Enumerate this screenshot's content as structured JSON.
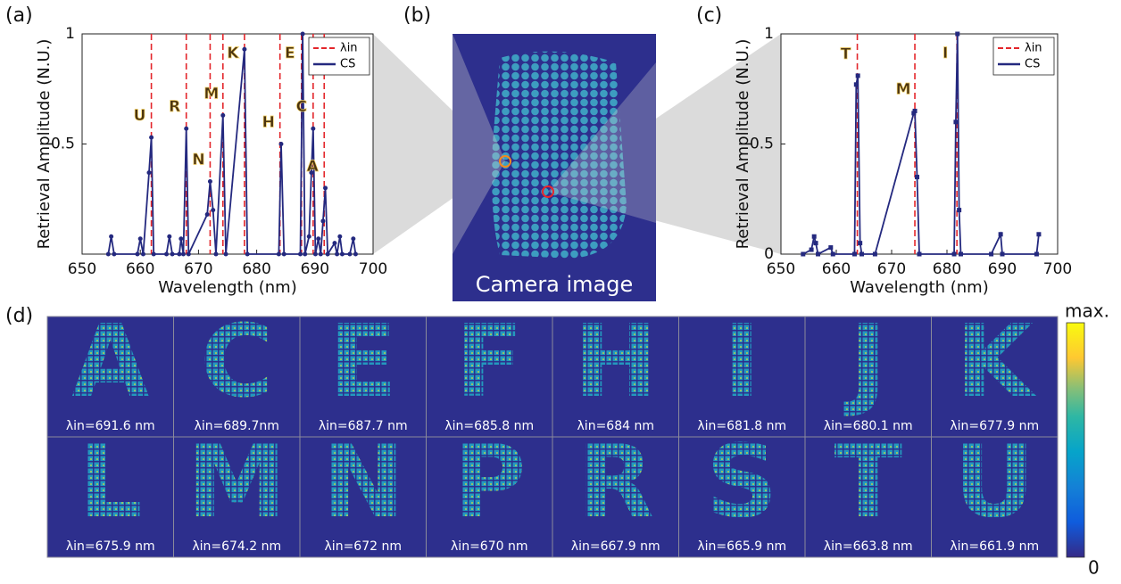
{
  "panel_labels": [
    "(a)",
    "(b)",
    "(c)",
    "(d)"
  ],
  "chart_data": [
    {
      "type": "line",
      "marker": "circle",
      "xlabel": "Wavelength (nm)",
      "ylabel": "Retrieval Amplitude (N.U.)",
      "xlim": [
        650,
        700
      ],
      "xticks": [
        650,
        660,
        670,
        680,
        690,
        700
      ],
      "ylim": [
        0,
        1
      ],
      "yticks": [
        0.5,
        1
      ],
      "legend": "upper right",
      "x": [
        654.5,
        655,
        655.5,
        659.5,
        660,
        660.5,
        661.5,
        661.9,
        662.3,
        664.5,
        665,
        665.5,
        666.7,
        667,
        667.4,
        667.9,
        668.3,
        671.5,
        672,
        672.5,
        673,
        674.2,
        674.7,
        677.9,
        678.4,
        683.8,
        684.2,
        684.7,
        687.5,
        687.9,
        688.3,
        689,
        689.4,
        689.7,
        690.1,
        690.6,
        691,
        691.4,
        691.8,
        692.2,
        693.4,
        693.8,
        694.3,
        694.7,
        696,
        696.6,
        697
      ],
      "series": [
        {
          "name": "CS",
          "color": "#24297f",
          "values": [
            0,
            0.08,
            0,
            0,
            0.07,
            0,
            0.37,
            0.53,
            0,
            0,
            0.08,
            0,
            0,
            0.07,
            0,
            0.57,
            0,
            0.18,
            0.33,
            0.2,
            0,
            0.63,
            0,
            0.93,
            0,
            0,
            0.5,
            0,
            0,
            1.0,
            0,
            0.08,
            0.37,
            0.57,
            0,
            0.07,
            0,
            0.15,
            0.3,
            0,
            0.05,
            0,
            0.08,
            0,
            0,
            0.07,
            0
          ]
        }
      ],
      "reference_lines": {
        "name": "λin",
        "color": "#e3262b",
        "x": [
          661.9,
          667.9,
          672,
          674.2,
          677.9,
          684,
          687.7,
          689.7,
          691.6
        ]
      },
      "annotations": [
        {
          "text": "U",
          "x": 661.9
        },
        {
          "text": "R",
          "x": 667.9
        },
        {
          "text": "N",
          "x": 672
        },
        {
          "text": "M",
          "x": 674.2
        },
        {
          "text": "K",
          "x": 677.9
        },
        {
          "text": "H",
          "x": 684
        },
        {
          "text": "E",
          "x": 687.7
        },
        {
          "text": "C",
          "x": 689.7
        },
        {
          "text": "A",
          "x": 691.6
        }
      ]
    },
    {
      "type": "line",
      "marker": "square",
      "xlabel": "Wavelength (nm)",
      "ylabel": "Retrieval Amplitude (N.U.)",
      "xlim": [
        650,
        700
      ],
      "xticks": [
        650,
        660,
        670,
        680,
        690,
        700
      ],
      "ylim": [
        0,
        1
      ],
      "yticks": [
        0,
        0.5,
        1
      ],
      "legend": "upper right",
      "x": [
        654,
        655.5,
        656,
        656.3,
        656.7,
        659,
        659.4,
        663.3,
        663.6,
        663.9,
        664.3,
        664.6,
        667,
        674,
        674.2,
        674.6,
        675,
        681.3,
        681.6,
        681.9,
        682.2,
        682.5,
        688,
        689.7,
        690,
        696.2,
        696.6
      ],
      "series": [
        {
          "name": "CS",
          "color": "#24297f",
          "values": [
            0,
            0.02,
            0.08,
            0.05,
            0,
            0.03,
            0,
            0,
            0.77,
            0.81,
            0.05,
            0,
            0,
            0.64,
            0.65,
            0.35,
            0,
            0,
            0.6,
            1.0,
            0.2,
            0,
            0,
            0.09,
            0,
            0,
            0.09
          ]
        }
      ],
      "reference_lines": {
        "name": "λin",
        "color": "#e3262b",
        "x": [
          663.8,
          674.2,
          681.8
        ]
      },
      "annotations": [
        {
          "text": "T",
          "x": 663.8
        },
        {
          "text": "M",
          "x": 674.2
        },
        {
          "text": "I",
          "x": 681.8
        }
      ]
    }
  ],
  "camera": {
    "caption": "Camera image"
  },
  "tiles": [
    {
      "letter": "A",
      "caption": "λin=691.6 nm"
    },
    {
      "letter": "C",
      "caption": "λin=689.7nm"
    },
    {
      "letter": "E",
      "caption": "λin=687.7 nm"
    },
    {
      "letter": "F",
      "caption": "λin=685.8 nm"
    },
    {
      "letter": "H",
      "caption": "λin=684 nm"
    },
    {
      "letter": "I",
      "caption": "λin=681.8 nm"
    },
    {
      "letter": "J",
      "caption": "λin=680.1 nm"
    },
    {
      "letter": "K",
      "caption": "λin=677.9 nm"
    },
    {
      "letter": "L",
      "caption": "λin=675.9 nm"
    },
    {
      "letter": "M",
      "caption": "λin=674.2 nm"
    },
    {
      "letter": "N",
      "caption": "λin=672 nm"
    },
    {
      "letter": "P",
      "caption": "λin=670 nm"
    },
    {
      "letter": "R",
      "caption": "λin=667.9 nm"
    },
    {
      "letter": "S",
      "caption": "λin=665.9 nm"
    },
    {
      "letter": "T",
      "caption": "λin=663.8 nm"
    },
    {
      "letter": "U",
      "caption": "λin=661.9 nm"
    }
  ],
  "colorbar": {
    "max_label": "max.",
    "min_label": "0"
  }
}
